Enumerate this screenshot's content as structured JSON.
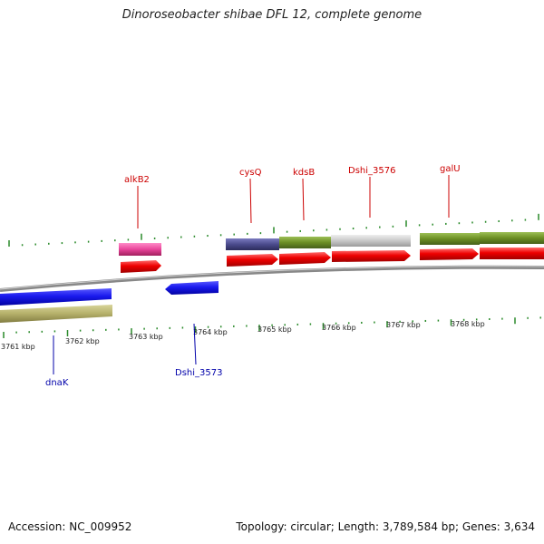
{
  "title": "Dinoroseobacter shibae DFL 12, complete genome",
  "accession": "Accession: NC_009952",
  "summary": "Topology: circular; Length: 3,789,584 bp; Genes: 3,634",
  "scale_labels": [
    "3761 kbp",
    "3762 kbp",
    "3763 kbp",
    "3764 kbp",
    "3765 kbp",
    "3766 kbp",
    "3767 kbp",
    "3768 kbp"
  ],
  "gene_labels": {
    "alkB2": "alkB2",
    "cysQ": "cysQ",
    "kdsB": "kdsB",
    "dshi3576": "Dshi_3576",
    "galU": "galU",
    "dnaK": "dnaK",
    "dshi3573": "Dshi_3573"
  },
  "colors": {
    "forward_gene": "#ee0000",
    "reverse_gene": "#1a1aee",
    "forward_label": "#cc0000",
    "reverse_label": "#0000aa",
    "tick": "#2a8a2a",
    "backbone": "#777777",
    "pink_feature": "#e8449a",
    "olive_feature": "#6b8e23",
    "khaki_feature": "#b5b06a",
    "slate_feature": "#4b4b8c",
    "grey_feature": "#c4c4c4"
  }
}
